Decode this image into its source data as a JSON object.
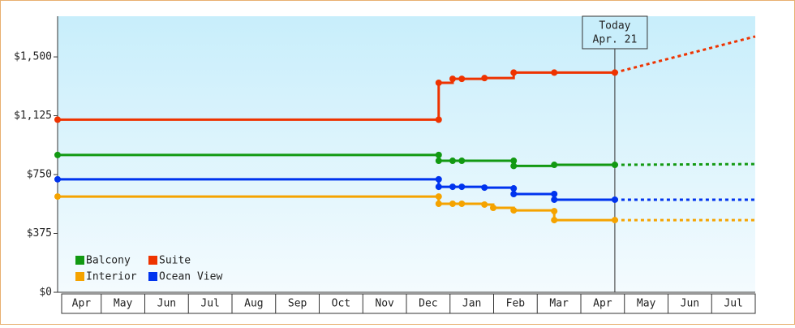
{
  "chart_data": {
    "type": "step-line",
    "categories": [
      "Apr",
      "May",
      "Jun",
      "Jul",
      "Aug",
      "Sep",
      "Oct",
      "Nov",
      "Dec",
      "Jan",
      "Feb",
      "Mar",
      "Apr",
      "May",
      "Jun",
      "Jul"
    ],
    "xlim": [
      0,
      16
    ],
    "ylim": [
      0,
      1759
    ],
    "yticks": [
      {
        "value": 0,
        "label": "$0"
      },
      {
        "value": 375,
        "label": "$375"
      },
      {
        "value": 750,
        "label": "$750"
      },
      {
        "value": 1125,
        "label": "$1,125"
      },
      {
        "value": 1500,
        "label": "$1,500"
      }
    ],
    "today": {
      "x": 12.78,
      "label": "Today",
      "date": "Apr. 21"
    },
    "legend": "lower left",
    "series": [
      {
        "name": "Balcony",
        "color": "#129912",
        "x": [
          0,
          8.74,
          8.74,
          9.06,
          9.27,
          10.46,
          10.46,
          11.39,
          12.78
        ],
        "values": [
          875,
          875,
          838,
          838,
          838,
          838,
          805,
          812,
          812
        ],
        "projection_x": [
          12.78,
          16
        ],
        "projection_values": [
          812,
          817
        ]
      },
      {
        "name": "Suite",
        "color": "#ee3300",
        "x": [
          0,
          8.74,
          8.74,
          9.06,
          9.27,
          9.79,
          10.46,
          11.39,
          12.78
        ],
        "values": [
          1100,
          1100,
          1335,
          1360,
          1360,
          1365,
          1400,
          1400,
          1400
        ],
        "projection_x": [
          12.78,
          16
        ],
        "projection_values": [
          1400,
          1630
        ]
      },
      {
        "name": "Interior",
        "color": "#f5a300",
        "x": [
          0,
          8.74,
          8.74,
          9.06,
          9.27,
          9.79,
          9.99,
          10.46,
          11.39,
          11.39,
          12.78
        ],
        "values": [
          610,
          610,
          564,
          564,
          564,
          559,
          538,
          522,
          517,
          460,
          460
        ],
        "projection_x": [
          12.78,
          16
        ],
        "projection_values": [
          460,
          460
        ]
      },
      {
        "name": "Ocean View",
        "color": "#0033ee",
        "x": [
          0,
          8.74,
          8.74,
          9.06,
          9.27,
          9.79,
          10.46,
          10.46,
          11.39,
          11.39,
          12.78
        ],
        "values": [
          720,
          720,
          672,
          672,
          672,
          667,
          662,
          626,
          626,
          590,
          590
        ],
        "projection_x": [
          12.78,
          16
        ],
        "projection_values": [
          590,
          590
        ]
      }
    ]
  }
}
